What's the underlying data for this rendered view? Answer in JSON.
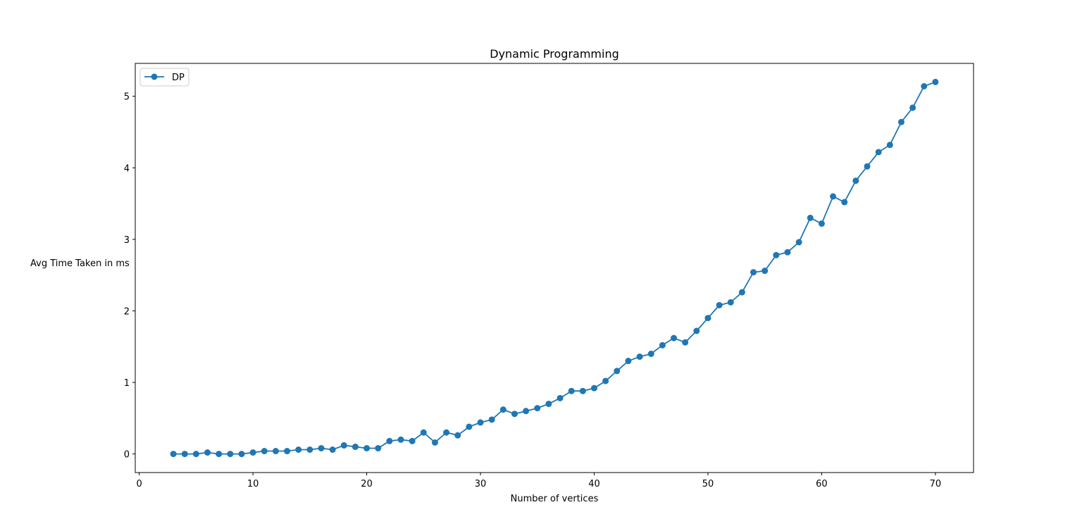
{
  "chart_data": {
    "type": "line",
    "title": "Dynamic Programming",
    "xlabel": "Number of vertices",
    "ylabel": "Avg Time Taken in ms",
    "xlim": [
      -0.35,
      73.35
    ],
    "ylim": [
      -0.26,
      5.46
    ],
    "xticks": [
      0,
      10,
      20,
      30,
      40,
      50,
      60,
      70
    ],
    "yticks": [
      0,
      1,
      2,
      3,
      4,
      5
    ],
    "grid": false,
    "legend_position": "top-left",
    "series": [
      {
        "name": "DP",
        "color": "#1f77b4",
        "marker": "circle",
        "x": [
          3,
          4,
          5,
          6,
          7,
          8,
          9,
          10,
          11,
          12,
          13,
          14,
          15,
          16,
          17,
          18,
          19,
          20,
          21,
          22,
          23,
          24,
          25,
          26,
          27,
          28,
          29,
          30,
          31,
          32,
          33,
          34,
          35,
          36,
          37,
          38,
          39,
          40,
          41,
          42,
          43,
          44,
          45,
          46,
          47,
          48,
          49,
          50,
          51,
          52,
          53,
          54,
          55,
          56,
          57,
          58,
          59,
          60,
          61,
          62,
          63,
          64,
          65,
          66,
          67,
          68,
          69,
          70
        ],
        "y": [
          0.0,
          0.0,
          0.0,
          0.02,
          0.0,
          0.0,
          0.0,
          0.02,
          0.04,
          0.04,
          0.04,
          0.06,
          0.06,
          0.08,
          0.06,
          0.12,
          0.1,
          0.08,
          0.08,
          0.18,
          0.2,
          0.18,
          0.3,
          0.16,
          0.3,
          0.26,
          0.38,
          0.44,
          0.48,
          0.62,
          0.56,
          0.6,
          0.64,
          0.7,
          0.78,
          0.88,
          0.88,
          0.92,
          1.02,
          1.16,
          1.3,
          1.36,
          1.4,
          1.52,
          1.62,
          1.56,
          1.72,
          1.9,
          2.08,
          2.12,
          2.26,
          2.54,
          2.56,
          2.78,
          2.82,
          2.96,
          3.3,
          3.22,
          3.6,
          3.52,
          3.82,
          4.02,
          4.22,
          4.32,
          4.64,
          4.84,
          5.14,
          5.2
        ]
      }
    ]
  }
}
